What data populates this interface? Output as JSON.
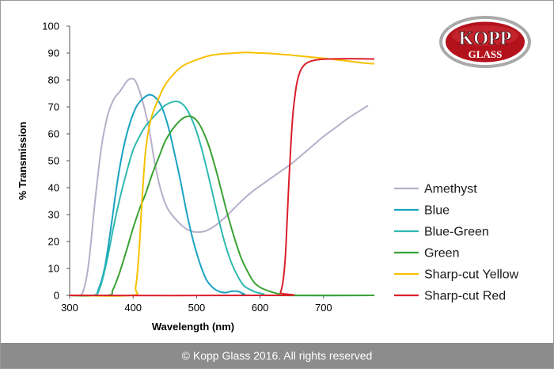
{
  "chart_data": {
    "type": "line",
    "title": "",
    "xlabel": "Wavelength (nm)",
    "ylabel": "% Transmission",
    "xlim": [
      300,
      780
    ],
    "ylim": [
      0,
      100
    ],
    "xticks": [
      300,
      400,
      500,
      600,
      700
    ],
    "yticks": [
      0,
      10,
      20,
      30,
      40,
      50,
      60,
      70,
      80,
      90,
      100
    ],
    "grid": false,
    "legend_position": "right",
    "series": [
      {
        "name": "Amethyst",
        "color": "#b7afc9",
        "points": [
          [
            300,
            0
          ],
          [
            315,
            0
          ],
          [
            322,
            2
          ],
          [
            330,
            12
          ],
          [
            340,
            35
          ],
          [
            350,
            55
          ],
          [
            360,
            67
          ],
          [
            370,
            73
          ],
          [
            380,
            76
          ],
          [
            390,
            79.5
          ],
          [
            398,
            80.5
          ],
          [
            405,
            79
          ],
          [
            415,
            72
          ],
          [
            425,
            62
          ],
          [
            435,
            48
          ],
          [
            445,
            38
          ],
          [
            455,
            32
          ],
          [
            470,
            27.5
          ],
          [
            485,
            24.5
          ],
          [
            500,
            23.5
          ],
          [
            515,
            24
          ],
          [
            530,
            26
          ],
          [
            545,
            29
          ],
          [
            560,
            32.5
          ],
          [
            575,
            36
          ],
          [
            590,
            39
          ],
          [
            605,
            41.5
          ],
          [
            620,
            44
          ],
          [
            635,
            46.5
          ],
          [
            650,
            49
          ],
          [
            665,
            52
          ],
          [
            680,
            55
          ],
          [
            700,
            59
          ],
          [
            720,
            62.5
          ],
          [
            740,
            66
          ],
          [
            760,
            69
          ],
          [
            770,
            70.5
          ]
        ]
      },
      {
        "name": "Blue",
        "color": "#1aa3c1",
        "points": [
          [
            300,
            0
          ],
          [
            338,
            0
          ],
          [
            345,
            2
          ],
          [
            355,
            10
          ],
          [
            365,
            25
          ],
          [
            375,
            42
          ],
          [
            385,
            55
          ],
          [
            395,
            64
          ],
          [
            405,
            70
          ],
          [
            415,
            73
          ],
          [
            425,
            74.5
          ],
          [
            435,
            73.5
          ],
          [
            445,
            70
          ],
          [
            455,
            63
          ],
          [
            465,
            53
          ],
          [
            475,
            42
          ],
          [
            485,
            30
          ],
          [
            495,
            20
          ],
          [
            505,
            12
          ],
          [
            515,
            6
          ],
          [
            525,
            3
          ],
          [
            535,
            1.5
          ],
          [
            545,
            1
          ],
          [
            555,
            1.5
          ],
          [
            565,
            1.5
          ],
          [
            575,
            0.5
          ],
          [
            590,
            0
          ],
          [
            780,
            0
          ]
        ]
      },
      {
        "name": "Blue-Green",
        "color": "#2eb9b1",
        "points": [
          [
            300,
            0
          ],
          [
            338,
            0
          ],
          [
            348,
            3
          ],
          [
            358,
            12
          ],
          [
            368,
            24
          ],
          [
            378,
            35
          ],
          [
            390,
            46
          ],
          [
            400,
            54
          ],
          [
            410,
            59
          ],
          [
            420,
            63
          ],
          [
            435,
            67
          ],
          [
            450,
            70.5
          ],
          [
            465,
            72
          ],
          [
            475,
            71.5
          ],
          [
            485,
            69
          ],
          [
            495,
            64
          ],
          [
            505,
            57
          ],
          [
            515,
            48
          ],
          [
            525,
            38
          ],
          [
            535,
            28
          ],
          [
            545,
            19
          ],
          [
            555,
            12
          ],
          [
            565,
            7
          ],
          [
            575,
            3.5
          ],
          [
            590,
            1.5
          ],
          [
            605,
            0.5
          ],
          [
            620,
            0
          ],
          [
            780,
            0
          ]
        ]
      },
      {
        "name": "Green",
        "color": "#3aa234",
        "points": [
          [
            300,
            0
          ],
          [
            360,
            0
          ],
          [
            368,
            2
          ],
          [
            378,
            8
          ],
          [
            390,
            17
          ],
          [
            400,
            25
          ],
          [
            410,
            32
          ],
          [
            420,
            38
          ],
          [
            430,
            45
          ],
          [
            440,
            51
          ],
          [
            450,
            57
          ],
          [
            460,
            61
          ],
          [
            470,
            64
          ],
          [
            480,
            66
          ],
          [
            490,
            66.5
          ],
          [
            500,
            65
          ],
          [
            510,
            61
          ],
          [
            520,
            55
          ],
          [
            530,
            47
          ],
          [
            540,
            38
          ],
          [
            550,
            29
          ],
          [
            560,
            21
          ],
          [
            570,
            14
          ],
          [
            580,
            9
          ],
          [
            590,
            5
          ],
          [
            600,
            3
          ],
          [
            615,
            1.5
          ],
          [
            630,
            0.5
          ],
          [
            645,
            0
          ],
          [
            780,
            0
          ]
        ]
      },
      {
        "name": "Sharp-cut Yellow",
        "color": "#f7c000",
        "points": [
          [
            300,
            0
          ],
          [
            398,
            0
          ],
          [
            404,
            3
          ],
          [
            409,
            15
          ],
          [
            414,
            35
          ],
          [
            419,
            52
          ],
          [
            424,
            61
          ],
          [
            430,
            67
          ],
          [
            440,
            73
          ],
          [
            450,
            78
          ],
          [
            465,
            82.5
          ],
          [
            480,
            85.5
          ],
          [
            500,
            87.5
          ],
          [
            520,
            89
          ],
          [
            540,
            89.7
          ],
          [
            560,
            90
          ],
          [
            580,
            90.2
          ],
          [
            600,
            90
          ],
          [
            620,
            89.8
          ],
          [
            650,
            89.2
          ],
          [
            680,
            88.5
          ],
          [
            710,
            87.8
          ],
          [
            740,
            87
          ],
          [
            760,
            86.4
          ],
          [
            780,
            86
          ]
        ]
      },
      {
        "name": "Sharp-cut Red",
        "color": "#dc1f2b",
        "points": [
          [
            300,
            0
          ],
          [
            628,
            0
          ],
          [
            632,
            1
          ],
          [
            636,
            5
          ],
          [
            640,
            15
          ],
          [
            643,
            30
          ],
          [
            646,
            45
          ],
          [
            649,
            58
          ],
          [
            652,
            68
          ],
          [
            656,
            76
          ],
          [
            660,
            81
          ],
          [
            666,
            84.5
          ],
          [
            675,
            86.5
          ],
          [
            690,
            87.5
          ],
          [
            710,
            87.8
          ],
          [
            740,
            87.9
          ],
          [
            780,
            87.8
          ]
        ]
      }
    ]
  },
  "logo": {
    "line1": "KOPP",
    "line2": "GLASS"
  },
  "footer": {
    "text": "© Kopp Glass 2016. All rights reserved"
  }
}
